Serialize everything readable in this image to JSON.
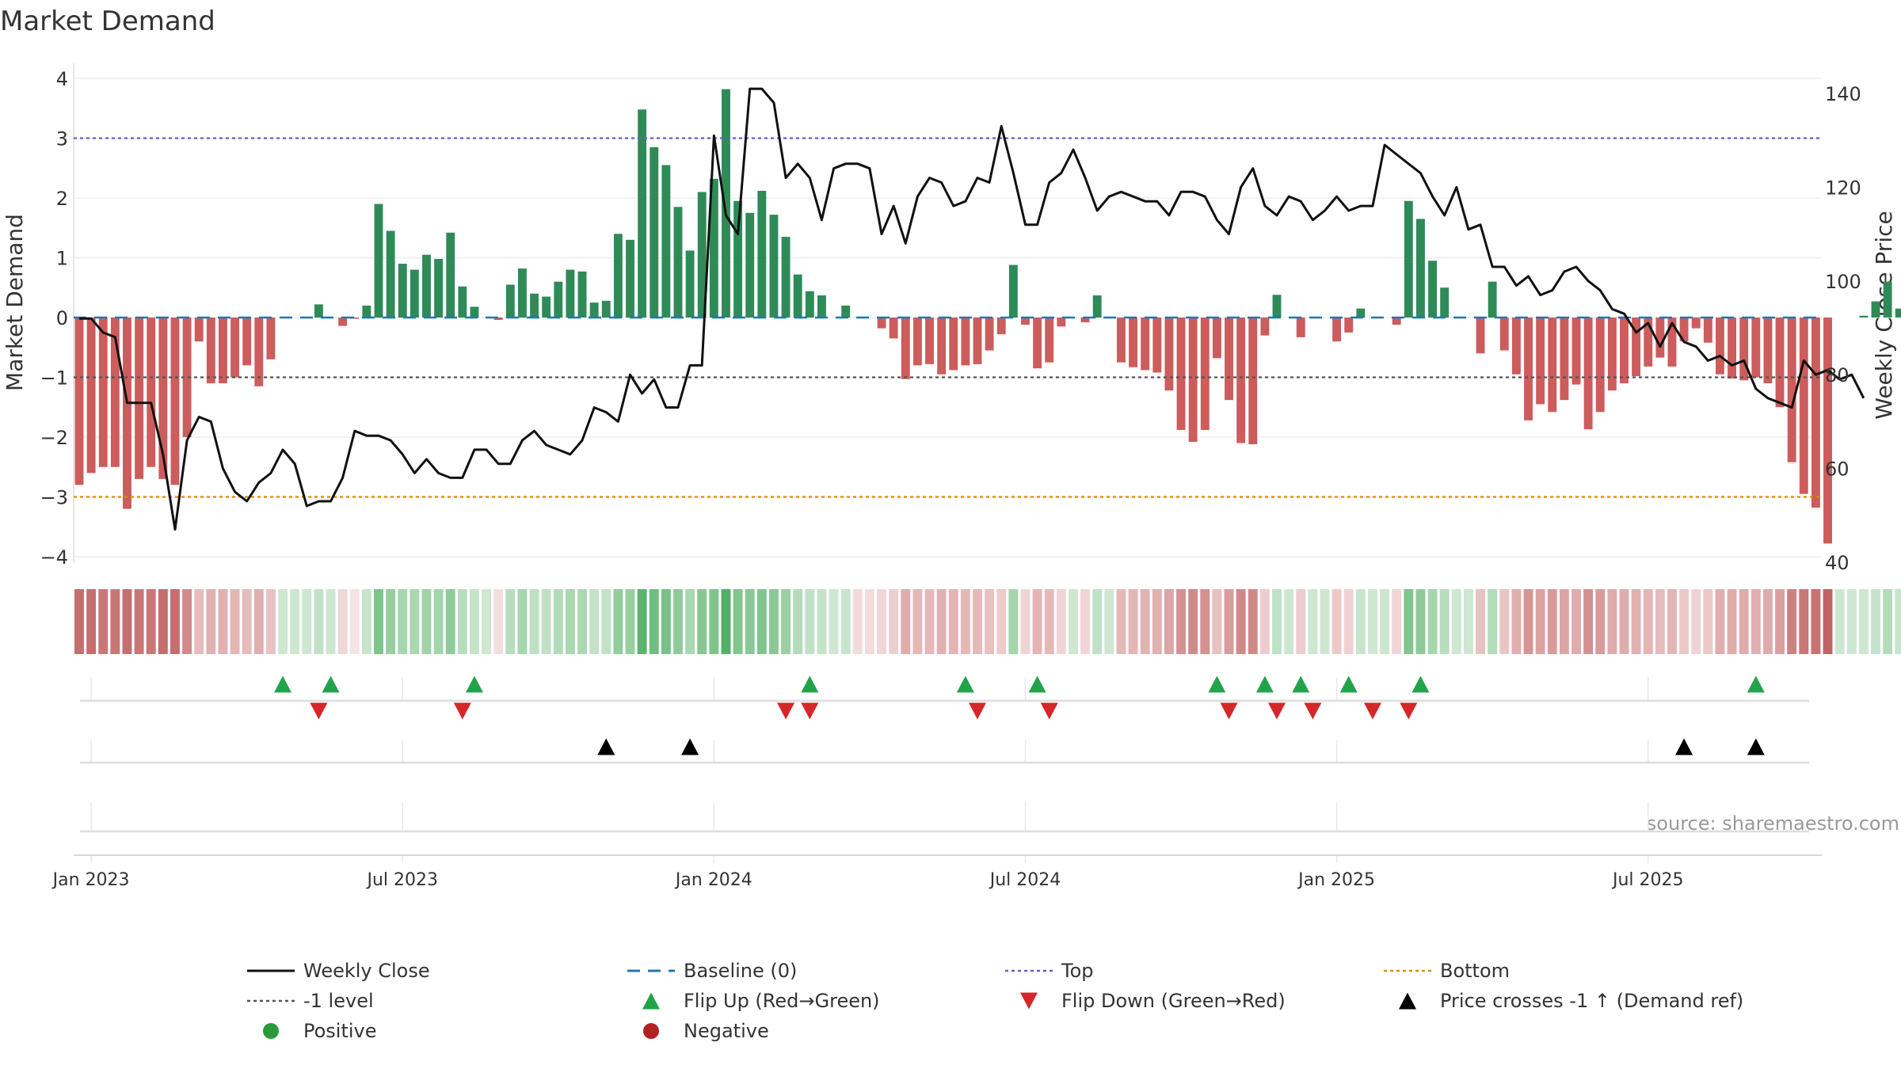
{
  "chart_data": {
    "type": "bar+line",
    "title": "Market Demand",
    "ylabel_left": "Market Demand",
    "ylabel_right": "Weekly Close Price",
    "ylim_left": [
      -4.3,
      4.4
    ],
    "ylim_right": [
      40,
      143
    ],
    "left_ticks": [
      -4,
      -3,
      -2,
      -1,
      0,
      1,
      2,
      3,
      4
    ],
    "left_tick_labels": [
      "−4",
      "−3",
      "−2",
      "−1",
      "0",
      "1",
      "2",
      "3",
      "4"
    ],
    "right_ticks": [
      40,
      60,
      80,
      100,
      120,
      140
    ],
    "right_tick_labels": [
      "40",
      "60",
      "80",
      "100",
      "120",
      "140"
    ],
    "x_ticks": [
      1,
      27,
      53,
      79,
      105,
      131
    ],
    "x_tick_labels": [
      "Jan 2023",
      "Jul 2023",
      "Jan 2024",
      "Jul 2024",
      "Jan 2025",
      "Jul 2025"
    ],
    "reference_levels": {
      "top": 3,
      "bottom": -3,
      "minus_one": -1,
      "baseline": 0
    },
    "demand": [
      -2.8,
      -2.6,
      -2.5,
      -2.5,
      -3.2,
      -2.7,
      -2.5,
      -2.7,
      -2.8,
      -2.0,
      -0.4,
      -1.1,
      -1.1,
      -1.0,
      -0.8,
      -1.15,
      -0.7,
      0.0,
      0.0,
      0.0,
      0.22,
      0.0,
      -0.14,
      -0.02,
      0.2,
      1.9,
      1.45,
      0.9,
      0.8,
      1.05,
      0.98,
      1.42,
      0.52,
      0.18,
      0.0,
      -0.04,
      0.55,
      0.82,
      0.4,
      0.35,
      0.6,
      0.8,
      0.77,
      0.25,
      0.28,
      1.4,
      1.3,
      3.48,
      2.85,
      2.55,
      1.85,
      1.12,
      2.1,
      2.32,
      3.82,
      1.95,
      1.75,
      2.12,
      1.72,
      1.35,
      0.72,
      0.44,
      0.37,
      0.0,
      0.2,
      0.0,
      0.0,
      -0.18,
      -0.35,
      -1.03,
      -0.8,
      -0.78,
      -0.95,
      -0.88,
      -0.8,
      -0.78,
      -0.55,
      -0.28,
      0.88,
      -0.12,
      -0.85,
      -0.75,
      -0.15,
      0.0,
      -0.08,
      0.37,
      0.0,
      -0.75,
      -0.83,
      -0.88,
      -0.92,
      -1.22,
      -1.88,
      -2.08,
      -1.88,
      -0.68,
      -1.38,
      -2.1,
      -2.12,
      -0.3,
      0.38,
      0.0,
      -0.33,
      0.0,
      0.0,
      -0.4,
      -0.25,
      0.15,
      0.0,
      0.0,
      -0.12,
      1.95,
      1.65,
      0.95,
      0.5,
      0.0,
      0.0,
      -0.6,
      0.6,
      -0.55,
      -0.95,
      -1.72,
      -1.45,
      -1.58,
      -1.38,
      -1.12,
      -1.87,
      -1.58,
      -1.22,
      -1.1,
      -0.98,
      -0.82,
      -0.67,
      -0.82,
      -0.4,
      -0.18,
      -0.42,
      -0.95,
      -1.02,
      -1.05,
      -1.0,
      -1.1,
      -1.5,
      -2.42,
      -2.95,
      -3.18,
      -3.78,
      0.0,
      0.0,
      0.03,
      0.27,
      0.6,
      0.15
    ],
    "price": [
      92,
      92,
      89,
      88,
      74,
      74,
      74,
      63,
      47,
      66,
      71,
      70,
      60,
      55,
      53,
      57,
      59,
      64,
      61,
      52,
      53,
      53,
      58,
      68,
      67,
      67,
      66,
      63,
      59,
      62,
      59,
      58,
      58,
      64,
      64,
      61,
      61,
      66,
      68,
      65,
      64,
      63,
      66,
      73,
      72,
      70,
      80,
      76,
      79,
      73,
      73,
      82,
      82,
      131,
      114,
      110,
      141,
      141,
      138,
      122,
      125,
      122,
      113,
      124,
      125,
      125,
      124,
      110,
      116,
      108,
      118,
      122,
      121,
      116,
      117,
      122,
      121,
      133,
      123,
      112,
      112,
      121,
      123,
      128,
      122,
      115,
      118,
      119,
      118,
      117,
      117,
      114,
      119,
      119,
      118,
      113,
      110,
      120,
      124,
      116,
      114,
      118,
      117,
      113,
      115,
      118,
      115,
      116,
      116,
      129,
      127,
      125,
      123,
      118,
      114,
      120,
      111,
      112,
      103,
      103,
      99,
      101,
      97,
      98,
      102,
      103,
      100,
      98,
      94,
      93,
      89,
      91,
      86,
      91,
      87,
      86,
      83,
      84,
      82,
      83,
      77,
      75,
      74,
      73,
      83,
      80,
      81,
      79,
      80,
      75
    ],
    "strip_shades": [
      "#c56e6e",
      "#c56e6e",
      "#c97676",
      "#c97676",
      "#c56e6e",
      "#c97676",
      "#c97676",
      "#c56e6e",
      "#c56e6e",
      "#d08a8a",
      "#e8bcbc",
      "#e2b0b0",
      "#e2b0b0",
      "#e4b6b6",
      "#e6bbbb",
      "#e0aeae",
      "#e8c2c2",
      "#cde7d1",
      "#cde7d1",
      "#cde7d1",
      "#c2e2c7",
      "#cde7d1",
      "#f0d6d6",
      "#f5e3e3",
      "#c7e4cc",
      "#7ec48d",
      "#95ce9f",
      "#a6d6ae",
      "#a9d8b1",
      "#a0d3a8",
      "#a3d5ab",
      "#8fcb9a",
      "#b8ddbe",
      "#c5e3ca",
      "#cde7d1",
      "#f3dede",
      "#b8ddbe",
      "#a6d6ae",
      "#bddfc2",
      "#bfe1c5",
      "#b2dbb9",
      "#a9d8b1",
      "#aad8b2",
      "#c3e2c8",
      "#c2e2c7",
      "#93cd9d",
      "#97cfa1",
      "#5ab46e",
      "#6ebe80",
      "#78c188",
      "#8fcb9a",
      "#a8d7b0",
      "#86c792",
      "#7fc48c",
      "#52b067",
      "#82c58e",
      "#88c894",
      "#7fc48c",
      "#89c995",
      "#9ad0a3",
      "#b4dcbb",
      "#c0e1c6",
      "#c4e3c9",
      "#cde7d1",
      "#c7e4cc",
      "#f2dbdb",
      "#f2dbdb",
      "#f0d6d6",
      "#ecd0d0",
      "#e0adad",
      "#e5b8b8",
      "#e5b9b9",
      "#e1b0b0",
      "#e3b4b4",
      "#e5b8b8",
      "#e5b9b9",
      "#e8c0c0",
      "#eccbcb",
      "#a4d5ac",
      "#efd4d4",
      "#e3b4b4",
      "#e5b8b8",
      "#efd5d5",
      "#cde7d1",
      "#f0d6d6",
      "#bfe1c5",
      "#cde7d1",
      "#e5b8b8",
      "#e3b5b5",
      "#e2b3b3",
      "#e1b1b1",
      "#dca6a6",
      "#d49191",
      "#d08a8a",
      "#d49191",
      "#e8c1c1",
      "#d99c9c",
      "#d08989",
      "#d08989",
      "#ecccce",
      "#bfe1c5",
      "#cde7d1",
      "#ecccce",
      "#cde7d1",
      "#cde7d1",
      "#ecc9c9",
      "#efd3d3",
      "#c7e4cc",
      "#cde7d1",
      "#cde7d1",
      "#f0d6d6",
      "#82c58e",
      "#8ec99a",
      "#a6d6ae",
      "#b8ddbe",
      "#cde7d1",
      "#cde7d1",
      "#e8c3c3",
      "#b3dcb9",
      "#e9c4c4",
      "#e0aeae",
      "#d59595",
      "#dba2a2",
      "#d89b9b",
      "#dca5a5",
      "#dfacac",
      "#d49090",
      "#d89b9b",
      "#deaaaa",
      "#dfadad",
      "#e1b1b1",
      "#e3b5b5",
      "#e6bbbb",
      "#e3b5b5",
      "#ecc9c9",
      "#efd3d3",
      "#ebc8c8",
      "#e0aeae",
      "#dfacac",
      "#dfabab",
      "#e0aeae",
      "#dfacac",
      "#da9f9f",
      "#cd8181",
      "#c97777",
      "#c87373",
      "#c06565",
      "#cde7d1",
      "#cde7d1",
      "#cde7d1",
      "#c5e3ca",
      "#b3dcb9",
      "#c7e4cc"
    ],
    "flip_up": [
      17,
      21,
      33,
      61,
      74,
      80,
      95,
      99,
      102,
      106,
      112,
      140
    ],
    "flip_down": [
      20,
      32,
      59,
      61,
      75,
      81,
      96,
      100,
      103,
      108,
      111
    ],
    "price_cross": [
      44,
      51,
      134,
      140
    ],
    "legend": [
      {
        "label": "Weekly Close",
        "kind": "line",
        "color": "#111111"
      },
      {
        "label": "Baseline (0)",
        "kind": "dash",
        "color": "#1f77b4"
      },
      {
        "label": "Top",
        "kind": "dot",
        "color": "#6a5acd"
      },
      {
        "label": "Bottom",
        "kind": "dot",
        "color": "#e08b00"
      },
      {
        "label": "-1 level",
        "kind": "dot",
        "color": "#555555"
      },
      {
        "label": "Flip Up (Red→Green)",
        "kind": "tri-up",
        "color": "#22a34a"
      },
      {
        "label": "Flip Down (Green→Red)",
        "kind": "tri-down",
        "color": "#d62728"
      },
      {
        "label": "Price crosses -1 ↑ (Demand ref)",
        "kind": "tri-up",
        "color": "#000000"
      },
      {
        "label": "Positive",
        "kind": "circle",
        "color": "#2a9a3a"
      },
      {
        "label": "Negative",
        "kind": "circle",
        "color": "#b22222"
      }
    ],
    "colors": {
      "positive": "#2e8b57",
      "negative": "#cd5c5c",
      "price": "#111111",
      "baseline": "#1f77b4",
      "top": "#6a5acd",
      "bottom": "#e08b00",
      "minus_one": "#555555"
    }
  },
  "source": "source: sharemaestro.com"
}
